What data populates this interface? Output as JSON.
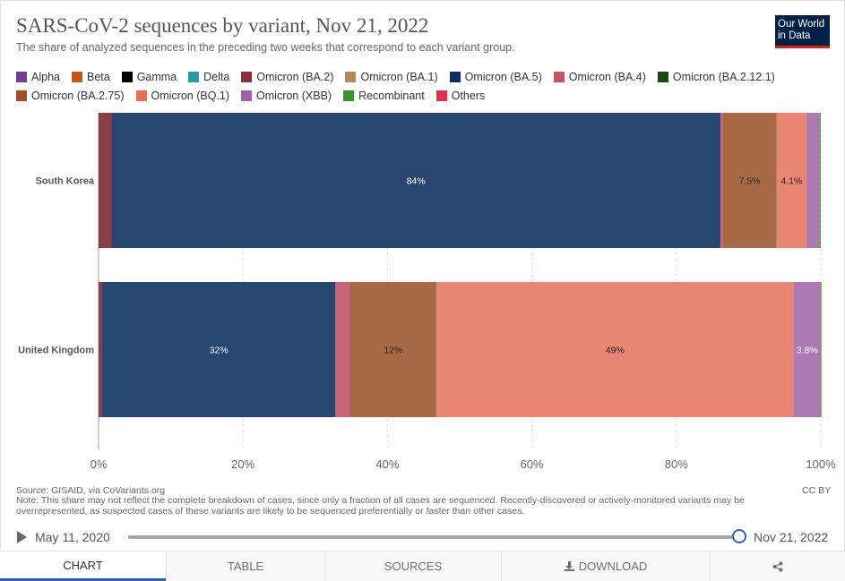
{
  "header": {
    "title": "SARS-CoV-2 sequences by variant, Nov 21, 2022",
    "subtitle": "The share of analyzed sequences in the preceding two weeks that correspond to each variant group.",
    "logo_line1": "Our World",
    "logo_line2": "in Data"
  },
  "legend": [
    {
      "label": "Alpha",
      "color": "#6d3e91"
    },
    {
      "label": "Beta",
      "color": "#c05917"
    },
    {
      "label": "Gamma",
      "color": "#000000"
    },
    {
      "label": "Delta",
      "color": "#2c9aa3"
    },
    {
      "label": "Omicron (BA.2)",
      "color": "#883039"
    },
    {
      "label": "Omicron (BA.1)",
      "color": "#b4885c"
    },
    {
      "label": "Omicron (BA.5)",
      "color": "#0f2e5c"
    },
    {
      "label": "Omicron (BA.4)",
      "color": "#c45366"
    },
    {
      "label": "Omicron (BA.2.12.1)",
      "color": "#18470f"
    },
    {
      "label": "Omicron (BA.2.75)",
      "color": "#9a5129"
    },
    {
      "label": "Omicron (BQ.1)",
      "color": "#e56e5a"
    },
    {
      "label": "Omicron (XBB)",
      "color": "#a061a9"
    },
    {
      "label": "Recombinant",
      "color": "#3b912b"
    },
    {
      "label": "Others",
      "color": "#e0304f"
    }
  ],
  "chart_data": {
    "type": "bar",
    "orientation": "horizontal",
    "stacked": true,
    "categories": [
      "South Korea",
      "United Kingdom"
    ],
    "xlim": [
      0,
      100
    ],
    "x_ticks": [
      "0%",
      "20%",
      "40%",
      "60%",
      "80%",
      "100%"
    ],
    "grid": true,
    "series": [
      {
        "name": "Omicron (BA.2)",
        "color": "#8a3f48",
        "values": [
          1.8,
          0.5
        ],
        "labels": [
          "",
          ""
        ]
      },
      {
        "name": "Omicron (BA.5)",
        "color": "#284672",
        "values": [
          84.3,
          32.3
        ],
        "labels": [
          "84%",
          "32%"
        ]
      },
      {
        "name": "Omicron (BA.4)",
        "color": "#c96578",
        "values": [
          0.3,
          2.0
        ],
        "labels": [
          "",
          ""
        ]
      },
      {
        "name": "Omicron (BA.2.75)",
        "color": "#a66a47",
        "values": [
          7.5,
          12.0
        ],
        "labels": [
          "7.5%",
          "12%"
        ]
      },
      {
        "name": "Omicron (BQ.1)",
        "color": "#e88673",
        "values": [
          4.1,
          49.4
        ],
        "labels": [
          "4.1%",
          "49%"
        ]
      },
      {
        "name": "Omicron (XBB)",
        "color": "#ad79b3",
        "values": [
          1.8,
          3.8
        ],
        "labels": [
          "",
          "3.8%"
        ]
      },
      {
        "name": "Recombinant",
        "color": "#5aa24b",
        "values": [
          0.2,
          0.1
        ],
        "labels": [
          "",
          ""
        ]
      }
    ]
  },
  "footer": {
    "source": "Source: GISAID, via CoVariants.org",
    "note_line1": "Note: This share may not reflect the complete breakdown of cases, since only a fraction of all cases are sequenced. Recently-discovered or actively-monitored variants may be",
    "note_line2": "overrepresented, as suspected cases of these variants are likely to be sequenced preferentially or faster than other cases.",
    "license": "CC BY"
  },
  "timeline": {
    "start": "May 11, 2020",
    "end": "Nov 21, 2022",
    "position": 1.0
  },
  "tabs": [
    "Chart",
    "Table",
    "Sources",
    "Download",
    ""
  ]
}
